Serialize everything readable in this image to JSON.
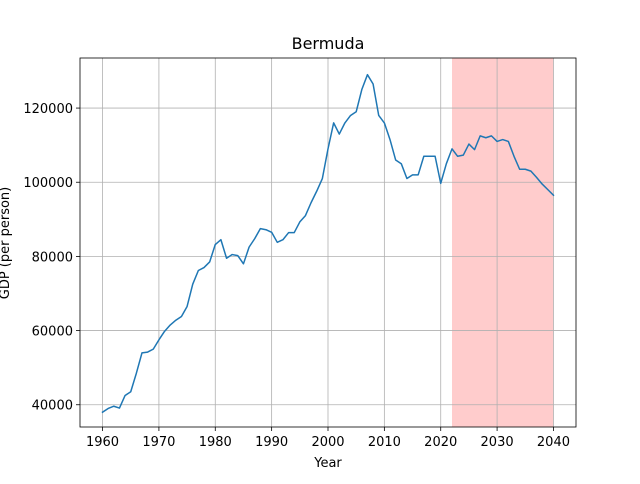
{
  "chart_data": {
    "type": "line",
    "title": "Bermuda",
    "xlabel": "Year",
    "ylabel": "GDP (per person)",
    "xlim": [
      1956.0,
      2044.0
    ],
    "ylim": [
      34000,
      133500
    ],
    "xticks": [
      1960,
      1970,
      1980,
      1990,
      2000,
      2010,
      2020,
      2030,
      2040
    ],
    "yticks": [
      40000,
      60000,
      80000,
      100000,
      120000
    ],
    "xtick_labels": [
      "1960",
      "1970",
      "1980",
      "1990",
      "2000",
      "2010",
      "2020",
      "2030",
      "2040"
    ],
    "ytick_labels": [
      "40000",
      "60000",
      "80000",
      "100000",
      "120000"
    ],
    "grid": true,
    "line_color": "#1f77b4",
    "highlight": {
      "x_start": 2022,
      "x_end": 2040,
      "color": "#ffcccc"
    },
    "series": [
      {
        "x": [
          1960,
          1961,
          1962,
          1963,
          1964,
          1965,
          1966,
          1967,
          1968,
          1969,
          1970,
          1971,
          1972,
          1973,
          1974,
          1975,
          1976,
          1977,
          1978,
          1979,
          1980,
          1981,
          1982,
          1983,
          1984,
          1985,
          1986,
          1987,
          1988,
          1989,
          1990,
          1991,
          1992,
          1993,
          1994,
          1995,
          1996,
          1997,
          1998,
          1999,
          2000,
          2001,
          2002,
          2003,
          2004,
          2005,
          2006,
          2007,
          2008,
          2009,
          2010,
          2011,
          2012,
          2013,
          2014,
          2015,
          2016,
          2017,
          2018,
          2019,
          2020,
          2021,
          2022,
          2023,
          2024,
          2025,
          2026,
          2027,
          2028,
          2029,
          2030,
          2031,
          2032,
          2033,
          2034,
          2035,
          2036,
          2037,
          2038,
          2039,
          2040
        ],
        "values": [
          38000,
          39000,
          39600,
          39100,
          42500,
          43500,
          48500,
          54000,
          54200,
          55000,
          57500,
          59800,
          61500,
          62800,
          63800,
          66500,
          72500,
          76200,
          77000,
          78500,
          83200,
          84500,
          79500,
          80500,
          80200,
          78000,
          82500,
          84800,
          87500,
          87200,
          86500,
          83800,
          84500,
          86400,
          86400,
          89300,
          91000,
          94500,
          97600,
          101000,
          109000,
          116000,
          113000,
          116000,
          118000,
          119000,
          125000,
          129000,
          126500,
          118000,
          116000,
          111500,
          106000,
          105000,
          101000,
          102000,
          102000,
          107000,
          107000,
          107000,
          99700,
          105000,
          109000,
          107000,
          107300,
          110300,
          108800,
          112500,
          112000,
          112500,
          111000,
          111500,
          111000,
          107000,
          103500,
          103500,
          103000,
          101300,
          99500,
          98000,
          96500
        ]
      }
    ]
  }
}
